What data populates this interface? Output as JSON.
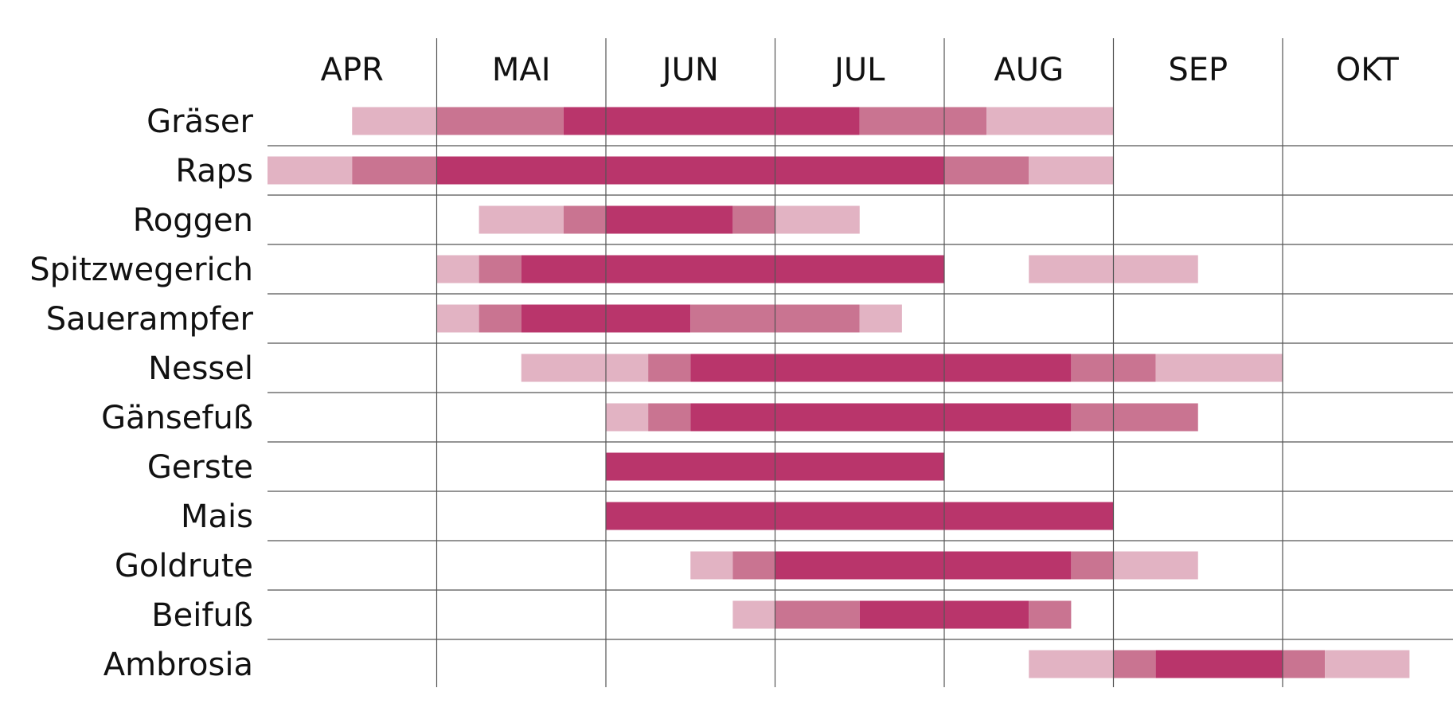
{
  "chart_data": {
    "type": "gantt",
    "title": "",
    "xlabel": "",
    "ylabel": "",
    "grid": true,
    "legend": "none",
    "months": [
      "APR",
      "MAI",
      "JUN",
      "JUL",
      "AUG",
      "SEP",
      "OKT"
    ],
    "x_range": [
      3.5,
      10.0
    ],
    "unit": "month (fractional, 4.0 = start of Mai)",
    "levels": [
      {
        "key": "low",
        "color": "#e2b3c3"
      },
      {
        "key": "medium",
        "color": "#c97491"
      },
      {
        "key": "high",
        "color": "#b9356b"
      }
    ],
    "rows": [
      {
        "label": "Gräser",
        "segments": [
          {
            "start": 3.5,
            "end": 4.0,
            "level": "low"
          },
          {
            "start": 4.0,
            "end": 4.75,
            "level": "medium"
          },
          {
            "start": 4.75,
            "end": 6.5,
            "level": "high"
          },
          {
            "start": 6.5,
            "end": 7.25,
            "level": "medium"
          },
          {
            "start": 7.25,
            "end": 8.0,
            "level": "low"
          }
        ]
      },
      {
        "label": "Raps",
        "segments": [
          {
            "start": 3.0,
            "end": 3.5,
            "level": "low"
          },
          {
            "start": 3.5,
            "end": 4.0,
            "level": "medium"
          },
          {
            "start": 4.0,
            "end": 7.0,
            "level": "high"
          },
          {
            "start": 7.0,
            "end": 7.5,
            "level": "medium"
          },
          {
            "start": 7.5,
            "end": 8.0,
            "level": "low"
          }
        ]
      },
      {
        "label": "Roggen",
        "segments": [
          {
            "start": 4.25,
            "end": 4.75,
            "level": "low"
          },
          {
            "start": 4.75,
            "end": 5.0,
            "level": "medium"
          },
          {
            "start": 5.0,
            "end": 5.75,
            "level": "high"
          },
          {
            "start": 5.75,
            "end": 6.0,
            "level": "medium"
          },
          {
            "start": 6.0,
            "end": 6.5,
            "level": "low"
          }
        ]
      },
      {
        "label": "Spitzwegerich",
        "segments": [
          {
            "start": 4.0,
            "end": 4.25,
            "level": "low"
          },
          {
            "start": 4.25,
            "end": 4.5,
            "level": "medium"
          },
          {
            "start": 4.5,
            "end": 7.0,
            "level": "high"
          },
          {
            "start": 7.5,
            "end": 8.5,
            "level": "low"
          }
        ]
      },
      {
        "label": "Sauerampfer",
        "segments": [
          {
            "start": 4.0,
            "end": 4.25,
            "level": "low"
          },
          {
            "start": 4.25,
            "end": 4.5,
            "level": "medium"
          },
          {
            "start": 4.5,
            "end": 5.5,
            "level": "high"
          },
          {
            "start": 5.5,
            "end": 6.5,
            "level": "medium"
          },
          {
            "start": 6.5,
            "end": 6.75,
            "level": "low"
          }
        ]
      },
      {
        "label": "Nessel",
        "segments": [
          {
            "start": 4.5,
            "end": 5.25,
            "level": "low"
          },
          {
            "start": 5.25,
            "end": 5.5,
            "level": "medium"
          },
          {
            "start": 5.5,
            "end": 7.75,
            "level": "high"
          },
          {
            "start": 7.75,
            "end": 8.25,
            "level": "medium"
          },
          {
            "start": 8.25,
            "end": 9.0,
            "level": "low"
          }
        ]
      },
      {
        "label": "Gänsefuß",
        "segments": [
          {
            "start": 5.0,
            "end": 5.25,
            "level": "low"
          },
          {
            "start": 5.25,
            "end": 5.5,
            "level": "medium"
          },
          {
            "start": 5.5,
            "end": 7.75,
            "level": "high"
          },
          {
            "start": 7.75,
            "end": 8.5,
            "level": "medium"
          }
        ]
      },
      {
        "label": "Gerste",
        "segments": [
          {
            "start": 5.0,
            "end": 7.0,
            "level": "high"
          }
        ]
      },
      {
        "label": "Mais",
        "segments": [
          {
            "start": 5.0,
            "end": 8.0,
            "level": "high"
          }
        ]
      },
      {
        "label": "Goldrute",
        "segments": [
          {
            "start": 5.5,
            "end": 5.75,
            "level": "low"
          },
          {
            "start": 5.75,
            "end": 6.0,
            "level": "medium"
          },
          {
            "start": 6.0,
            "end": 7.75,
            "level": "high"
          },
          {
            "start": 7.75,
            "end": 8.0,
            "level": "medium"
          },
          {
            "start": 8.0,
            "end": 8.5,
            "level": "low"
          }
        ]
      },
      {
        "label": "Beifuß",
        "segments": [
          {
            "start": 5.75,
            "end": 6.0,
            "level": "low"
          },
          {
            "start": 6.0,
            "end": 6.5,
            "level": "medium"
          },
          {
            "start": 6.5,
            "end": 7.5,
            "level": "high"
          },
          {
            "start": 7.5,
            "end": 7.75,
            "level": "medium"
          }
        ]
      },
      {
        "label": "Ambrosia",
        "segments": [
          {
            "start": 7.5,
            "end": 8.0,
            "level": "low"
          },
          {
            "start": 8.0,
            "end": 8.25,
            "level": "medium"
          },
          {
            "start": 8.25,
            "end": 9.0,
            "level": "high"
          },
          {
            "start": 9.0,
            "end": 9.25,
            "level": "medium"
          },
          {
            "start": 9.25,
            "end": 9.75,
            "level": "low"
          }
        ]
      }
    ]
  }
}
